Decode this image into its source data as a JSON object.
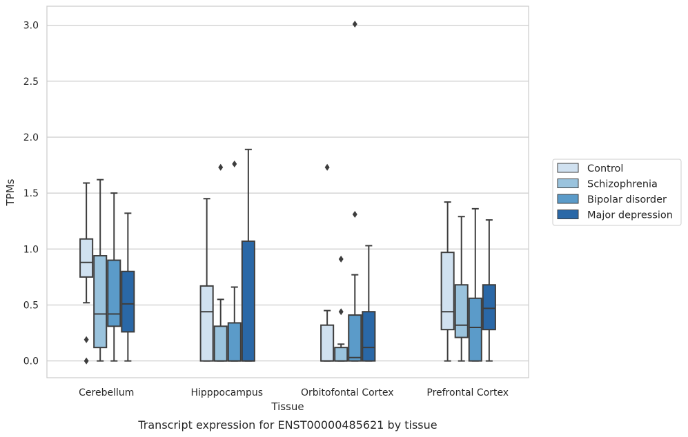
{
  "chart_data": {
    "type": "box",
    "xlabel": "Tissue",
    "ylabel": "TPMs",
    "caption": "Transcript expression for ENST00000485621 by tissue",
    "ylim": [
      -0.15,
      3.17
    ],
    "yticks": [
      "0.0",
      "0.5",
      "1.0",
      "1.5",
      "2.0",
      "2.5",
      "3.0"
    ],
    "grid": "horizontal",
    "legend_position": "right",
    "categories": [
      "Cerebellum",
      "Hipppocampus",
      "Orbitofontal Cortex",
      "Prefrontal Cortex"
    ],
    "series": [
      {
        "name": "Control",
        "color": "#d0e1f0",
        "boxes": [
          {
            "whislo": 0.52,
            "q1": 0.75,
            "med": 0.88,
            "q3": 1.09,
            "whishi": 1.59,
            "fliers": [
              0.19,
              0.0
            ]
          },
          {
            "whislo": 0.0,
            "q1": 0.0,
            "med": 0.44,
            "q3": 0.67,
            "whishi": 1.45,
            "fliers": []
          },
          {
            "whislo": 0.0,
            "q1": 0.0,
            "med": 0.0,
            "q3": 0.32,
            "whishi": 0.45,
            "fliers": [
              1.73
            ]
          },
          {
            "whislo": 0.0,
            "q1": 0.28,
            "med": 0.44,
            "q3": 0.97,
            "whishi": 1.42,
            "fliers": []
          }
        ]
      },
      {
        "name": "Schizophrenia",
        "color": "#9ac3dd",
        "boxes": [
          {
            "whislo": 0.0,
            "q1": 0.12,
            "med": 0.42,
            "q3": 0.94,
            "whishi": 1.62,
            "fliers": []
          },
          {
            "whislo": 0.0,
            "q1": 0.0,
            "med": 0.0,
            "q3": 0.31,
            "whishi": 0.55,
            "fliers": [
              1.73
            ]
          },
          {
            "whislo": 0.0,
            "q1": 0.0,
            "med": 0.0,
            "q3": 0.12,
            "whishi": 0.15,
            "fliers": [
              0.91,
              0.44
            ]
          },
          {
            "whislo": 0.0,
            "q1": 0.21,
            "med": 0.32,
            "q3": 0.68,
            "whishi": 1.29,
            "fliers": []
          }
        ]
      },
      {
        "name": "Bipolar disorder",
        "color": "#5b9bc9",
        "boxes": [
          {
            "whislo": 0.0,
            "q1": 0.31,
            "med": 0.42,
            "q3": 0.9,
            "whishi": 1.5,
            "fliers": []
          },
          {
            "whislo": 0.0,
            "q1": 0.0,
            "med": 0.0,
            "q3": 0.34,
            "whishi": 0.66,
            "fliers": [
              1.76
            ]
          },
          {
            "whislo": 0.0,
            "q1": 0.0,
            "med": 0.03,
            "q3": 0.41,
            "whishi": 0.77,
            "fliers": [
              1.31,
              3.01
            ]
          },
          {
            "whislo": 0.0,
            "q1": 0.0,
            "med": 0.3,
            "q3": 0.56,
            "whishi": 1.36,
            "fliers": []
          }
        ]
      },
      {
        "name": "Major depression",
        "color": "#2a68a7",
        "boxes": [
          {
            "whislo": 0.0,
            "q1": 0.26,
            "med": 0.51,
            "q3": 0.8,
            "whishi": 1.32,
            "fliers": []
          },
          {
            "whislo": 0.0,
            "q1": 0.0,
            "med": 0.0,
            "q3": 1.07,
            "whishi": 1.89,
            "fliers": []
          },
          {
            "whislo": 0.0,
            "q1": 0.0,
            "med": 0.12,
            "q3": 0.44,
            "whishi": 1.03,
            "fliers": []
          },
          {
            "whislo": 0.0,
            "q1": 0.28,
            "med": 0.47,
            "q3": 0.68,
            "whishi": 1.26,
            "fliers": []
          }
        ]
      }
    ]
  }
}
